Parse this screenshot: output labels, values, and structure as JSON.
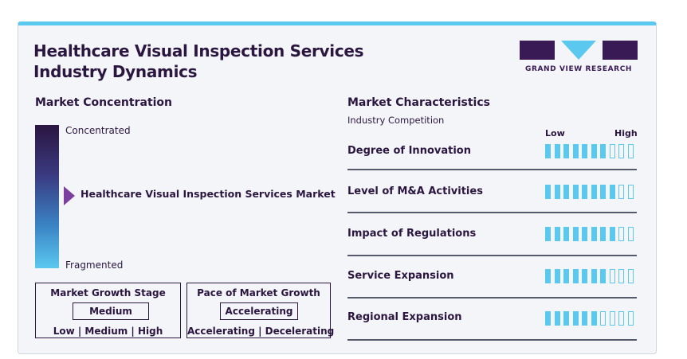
{
  "header": {
    "title_line1": "Healthcare Visual Inspection Services",
    "title_line2": "Industry Dynamics",
    "logo_text": "GRAND VIEW RESEARCH",
    "accent_color": "#5bc8ef",
    "brand_color": "#3a1a55"
  },
  "concentration": {
    "heading": "Market Concentration",
    "top_label": "Concentrated",
    "bottom_label": "Fragmented",
    "marker_label": "Healthcare Visual Inspection Services Market",
    "marker_level": 0.47
  },
  "growth_stage": {
    "title": "Market Growth Stage",
    "value": "Medium",
    "options": "Low | Medium | High"
  },
  "growth_pace": {
    "title": "Pace of Market Growth",
    "value": "Accelerating",
    "options": "Accelerating | Decelerating"
  },
  "characteristics": {
    "heading": "Market Characteristics",
    "subheading": "Industry Competition",
    "low_label": "Low",
    "high_label": "High",
    "total_segments": 10,
    "rows": [
      {
        "label": "Degree of Innovation",
        "level": 7
      },
      {
        "label": "Level of M&A Activities",
        "level": 8
      },
      {
        "label": "Impact of Regulations",
        "level": 8
      },
      {
        "label": "Service Expansion",
        "level": 7
      },
      {
        "label": "Regional Expansion",
        "level": 6
      }
    ]
  }
}
